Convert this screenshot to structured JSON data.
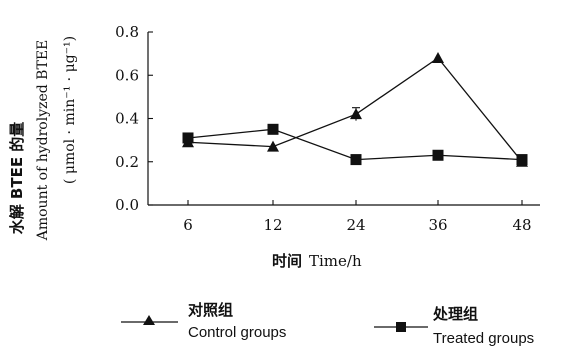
{
  "chart_data": {
    "type": "line",
    "categories": [
      "6",
      "12",
      "24",
      "36",
      "48"
    ],
    "x": [
      6,
      12,
      24,
      36,
      48
    ],
    "ylim": [
      0.0,
      0.8
    ],
    "yticks": [
      "0.0",
      "0.2",
      "0.4",
      "0.6",
      "0.8"
    ],
    "ylabel_cn": "水解 BTEE 的量",
    "ylabel_en": "Amount of hydrolyzed BTEE",
    "ylabel_unit": "( μmol · min⁻¹ · μg⁻¹)",
    "xlabel_cn": "时间",
    "xlabel_en": "Time/h",
    "grid": false,
    "legend_position": "bottom",
    "series": [
      {
        "name_cn": "对照组",
        "name_en": "Control groups",
        "marker": "triangle",
        "values": [
          0.29,
          0.27,
          0.42,
          0.68,
          0.2
        ],
        "errors": [
          0,
          0,
          0.03,
          0,
          0
        ]
      },
      {
        "name_cn": "处理组",
        "name_en": "Treated groups",
        "marker": "square",
        "values": [
          0.31,
          0.35,
          0.21,
          0.23,
          0.21
        ],
        "errors": [
          0,
          0,
          0,
          0,
          0
        ]
      }
    ]
  }
}
